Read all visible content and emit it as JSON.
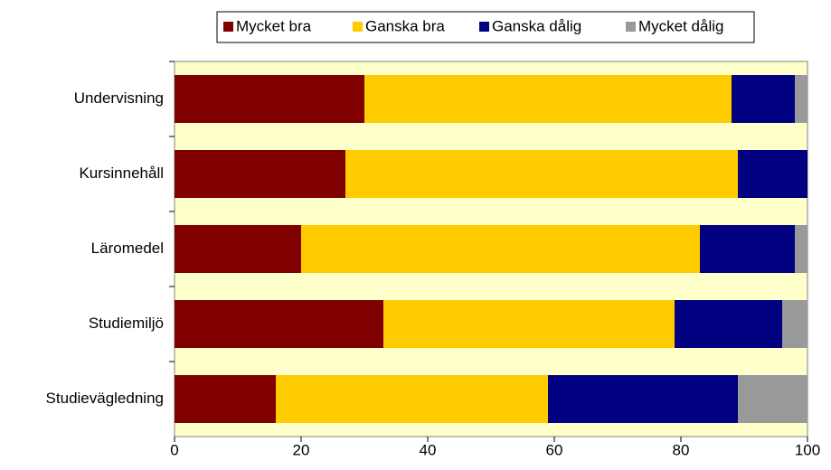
{
  "chart_data": {
    "type": "stacked_barh",
    "categories": [
      "Undervisning",
      "Kursinnehåll",
      "Läromedel",
      "Studiemiljö",
      "Studievägledning"
    ],
    "series": [
      {
        "name": "Mycket bra",
        "color": "#800000",
        "values": [
          30,
          27,
          20,
          33,
          16
        ]
      },
      {
        "name": "Ganska bra",
        "color": "#ffcc00",
        "values": [
          58,
          62,
          63,
          46,
          43
        ]
      },
      {
        "name": "Ganska dålig",
        "color": "#000080",
        "values": [
          10,
          11,
          15,
          17,
          30
        ]
      },
      {
        "name": "Mycket dålig",
        "color": "#999999",
        "values": [
          2,
          0,
          2,
          4,
          11
        ]
      }
    ],
    "xlim": [
      0,
      100
    ],
    "xticks": [
      0,
      20,
      40,
      60,
      80,
      100
    ],
    "legend": "top",
    "plot_background": "#ffffcc"
  }
}
